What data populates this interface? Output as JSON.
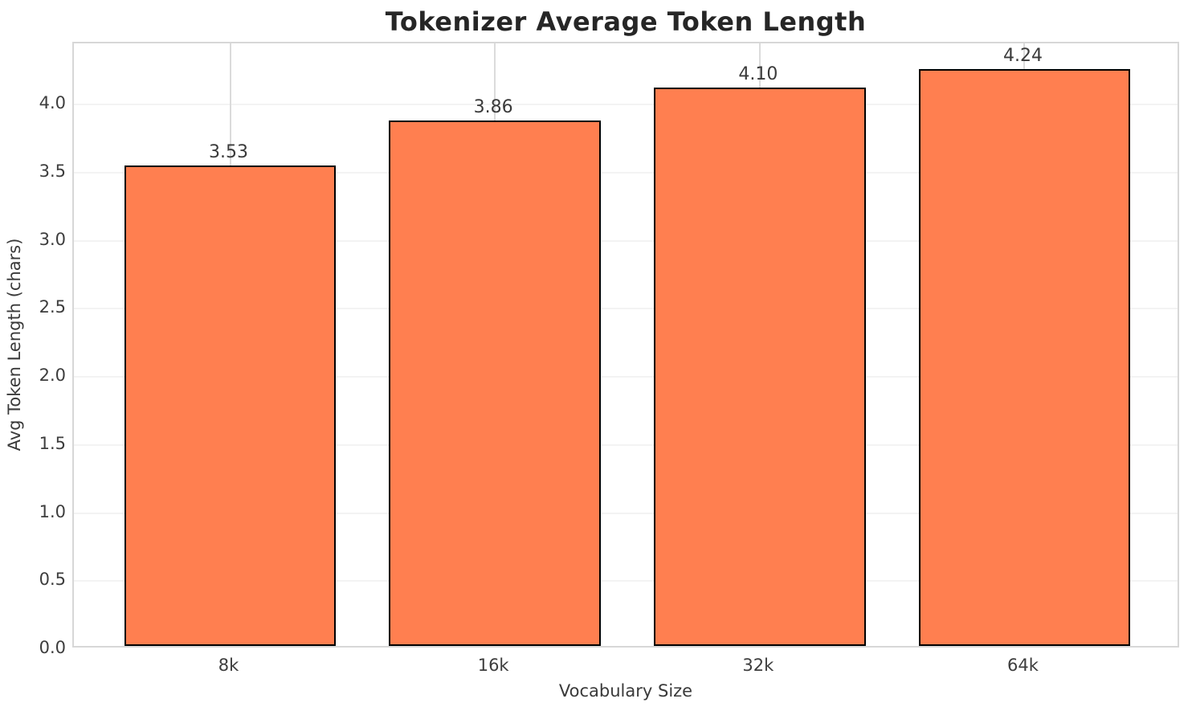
{
  "chart_data": {
    "type": "bar",
    "title": "Tokenizer Average Token Length",
    "xlabel": "Vocabulary Size",
    "ylabel": "Avg Token Length (chars)",
    "categories": [
      "8k",
      "16k",
      "32k",
      "64k"
    ],
    "values": [
      3.53,
      3.86,
      4.1,
      4.24
    ],
    "value_labels": [
      "3.53",
      "3.86",
      "4.10",
      "4.24"
    ],
    "yticks": [
      0.0,
      0.5,
      1.0,
      1.5,
      2.0,
      2.5,
      3.0,
      3.5,
      4.0
    ],
    "ytick_labels": [
      "0.0",
      "0.5",
      "1.0",
      "1.5",
      "2.0",
      "2.5",
      "3.0",
      "3.5",
      "4.0"
    ],
    "ylim": [
      0,
      4.45
    ],
    "grid": "on",
    "legend": "none",
    "bar_color": "#ff7f50",
    "bar_edge_color": "#000000",
    "background_color": "#ffffff",
    "grid_color_horizontal": "#f3f3f3",
    "grid_color_vertical": "#dbdbdb",
    "spine_color": "#d7d7d7",
    "text_color": "#3a3a3a",
    "title_color": "#262626"
  }
}
